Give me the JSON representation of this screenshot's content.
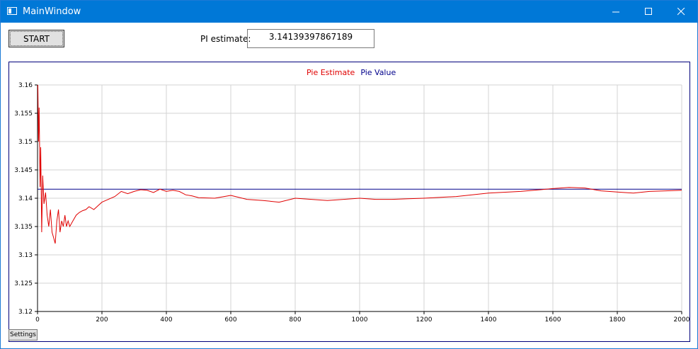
{
  "window": {
    "title": "MainWindow",
    "icon": "window-app-icon"
  },
  "controls": {
    "start_label": "START",
    "pi_label": "PI estimate:",
    "pi_value": "3.14139397867189",
    "settings_label": "Settings"
  },
  "chart_data": {
    "type": "line",
    "title": "",
    "xlabel": "",
    "ylabel": "",
    "xlim": [
      0,
      2000
    ],
    "ylim": [
      3.12,
      3.16
    ],
    "x_ticks": [
      "0",
      "200",
      "400",
      "600",
      "800",
      "1000",
      "1200",
      "1400",
      "1600",
      "1800",
      "2000"
    ],
    "y_ticks": [
      "3.12",
      "3.125",
      "3.13",
      "3.135",
      "3.14",
      "3.145",
      "3.15",
      "3.155",
      "3.16"
    ],
    "grid": true,
    "legend": "top-center",
    "series": [
      {
        "name": "Pie Estimate",
        "color": "#e00000",
        "x": [
          1,
          3,
          5,
          8,
          10,
          13,
          16,
          20,
          25,
          30,
          35,
          40,
          45,
          50,
          55,
          60,
          65,
          70,
          75,
          80,
          85,
          90,
          95,
          100,
          110,
          120,
          130,
          140,
          150,
          160,
          175,
          190,
          200,
          220,
          240,
          260,
          280,
          300,
          320,
          340,
          360,
          380,
          400,
          420,
          440,
          460,
          480,
          500,
          550,
          600,
          650,
          700,
          750,
          800,
          850,
          900,
          950,
          1000,
          1050,
          1100,
          1150,
          1200,
          1300,
          1400,
          1500,
          1600,
          1650,
          1700,
          1750,
          1800,
          1850,
          1900,
          1950,
          2000
        ],
        "y": [
          3.16,
          3.15,
          3.156,
          3.142,
          3.149,
          3.134,
          3.144,
          3.139,
          3.141,
          3.137,
          3.135,
          3.138,
          3.134,
          3.133,
          3.132,
          3.136,
          3.138,
          3.134,
          3.136,
          3.135,
          3.137,
          3.135,
          3.136,
          3.135,
          3.136,
          3.137,
          3.1375,
          3.1378,
          3.138,
          3.1385,
          3.138,
          3.1388,
          3.1393,
          3.1398,
          3.1403,
          3.1412,
          3.1408,
          3.1412,
          3.1415,
          3.1414,
          3.141,
          3.1416,
          3.1412,
          3.1414,
          3.1412,
          3.1406,
          3.1404,
          3.1401,
          3.14,
          3.1405,
          3.1398,
          3.1396,
          3.1393,
          3.14,
          3.1398,
          3.1396,
          3.1398,
          3.14,
          3.1398,
          3.1398,
          3.1399,
          3.14,
          3.1403,
          3.1409,
          3.1412,
          3.1417,
          3.1419,
          3.1418,
          3.1413,
          3.1411,
          3.1409,
          3.1412,
          3.1413,
          3.1414
        ]
      },
      {
        "name": "Pie Value",
        "color": "#00008b",
        "x": [
          0,
          2000
        ],
        "y": [
          3.14159265,
          3.14159265
        ]
      }
    ]
  }
}
